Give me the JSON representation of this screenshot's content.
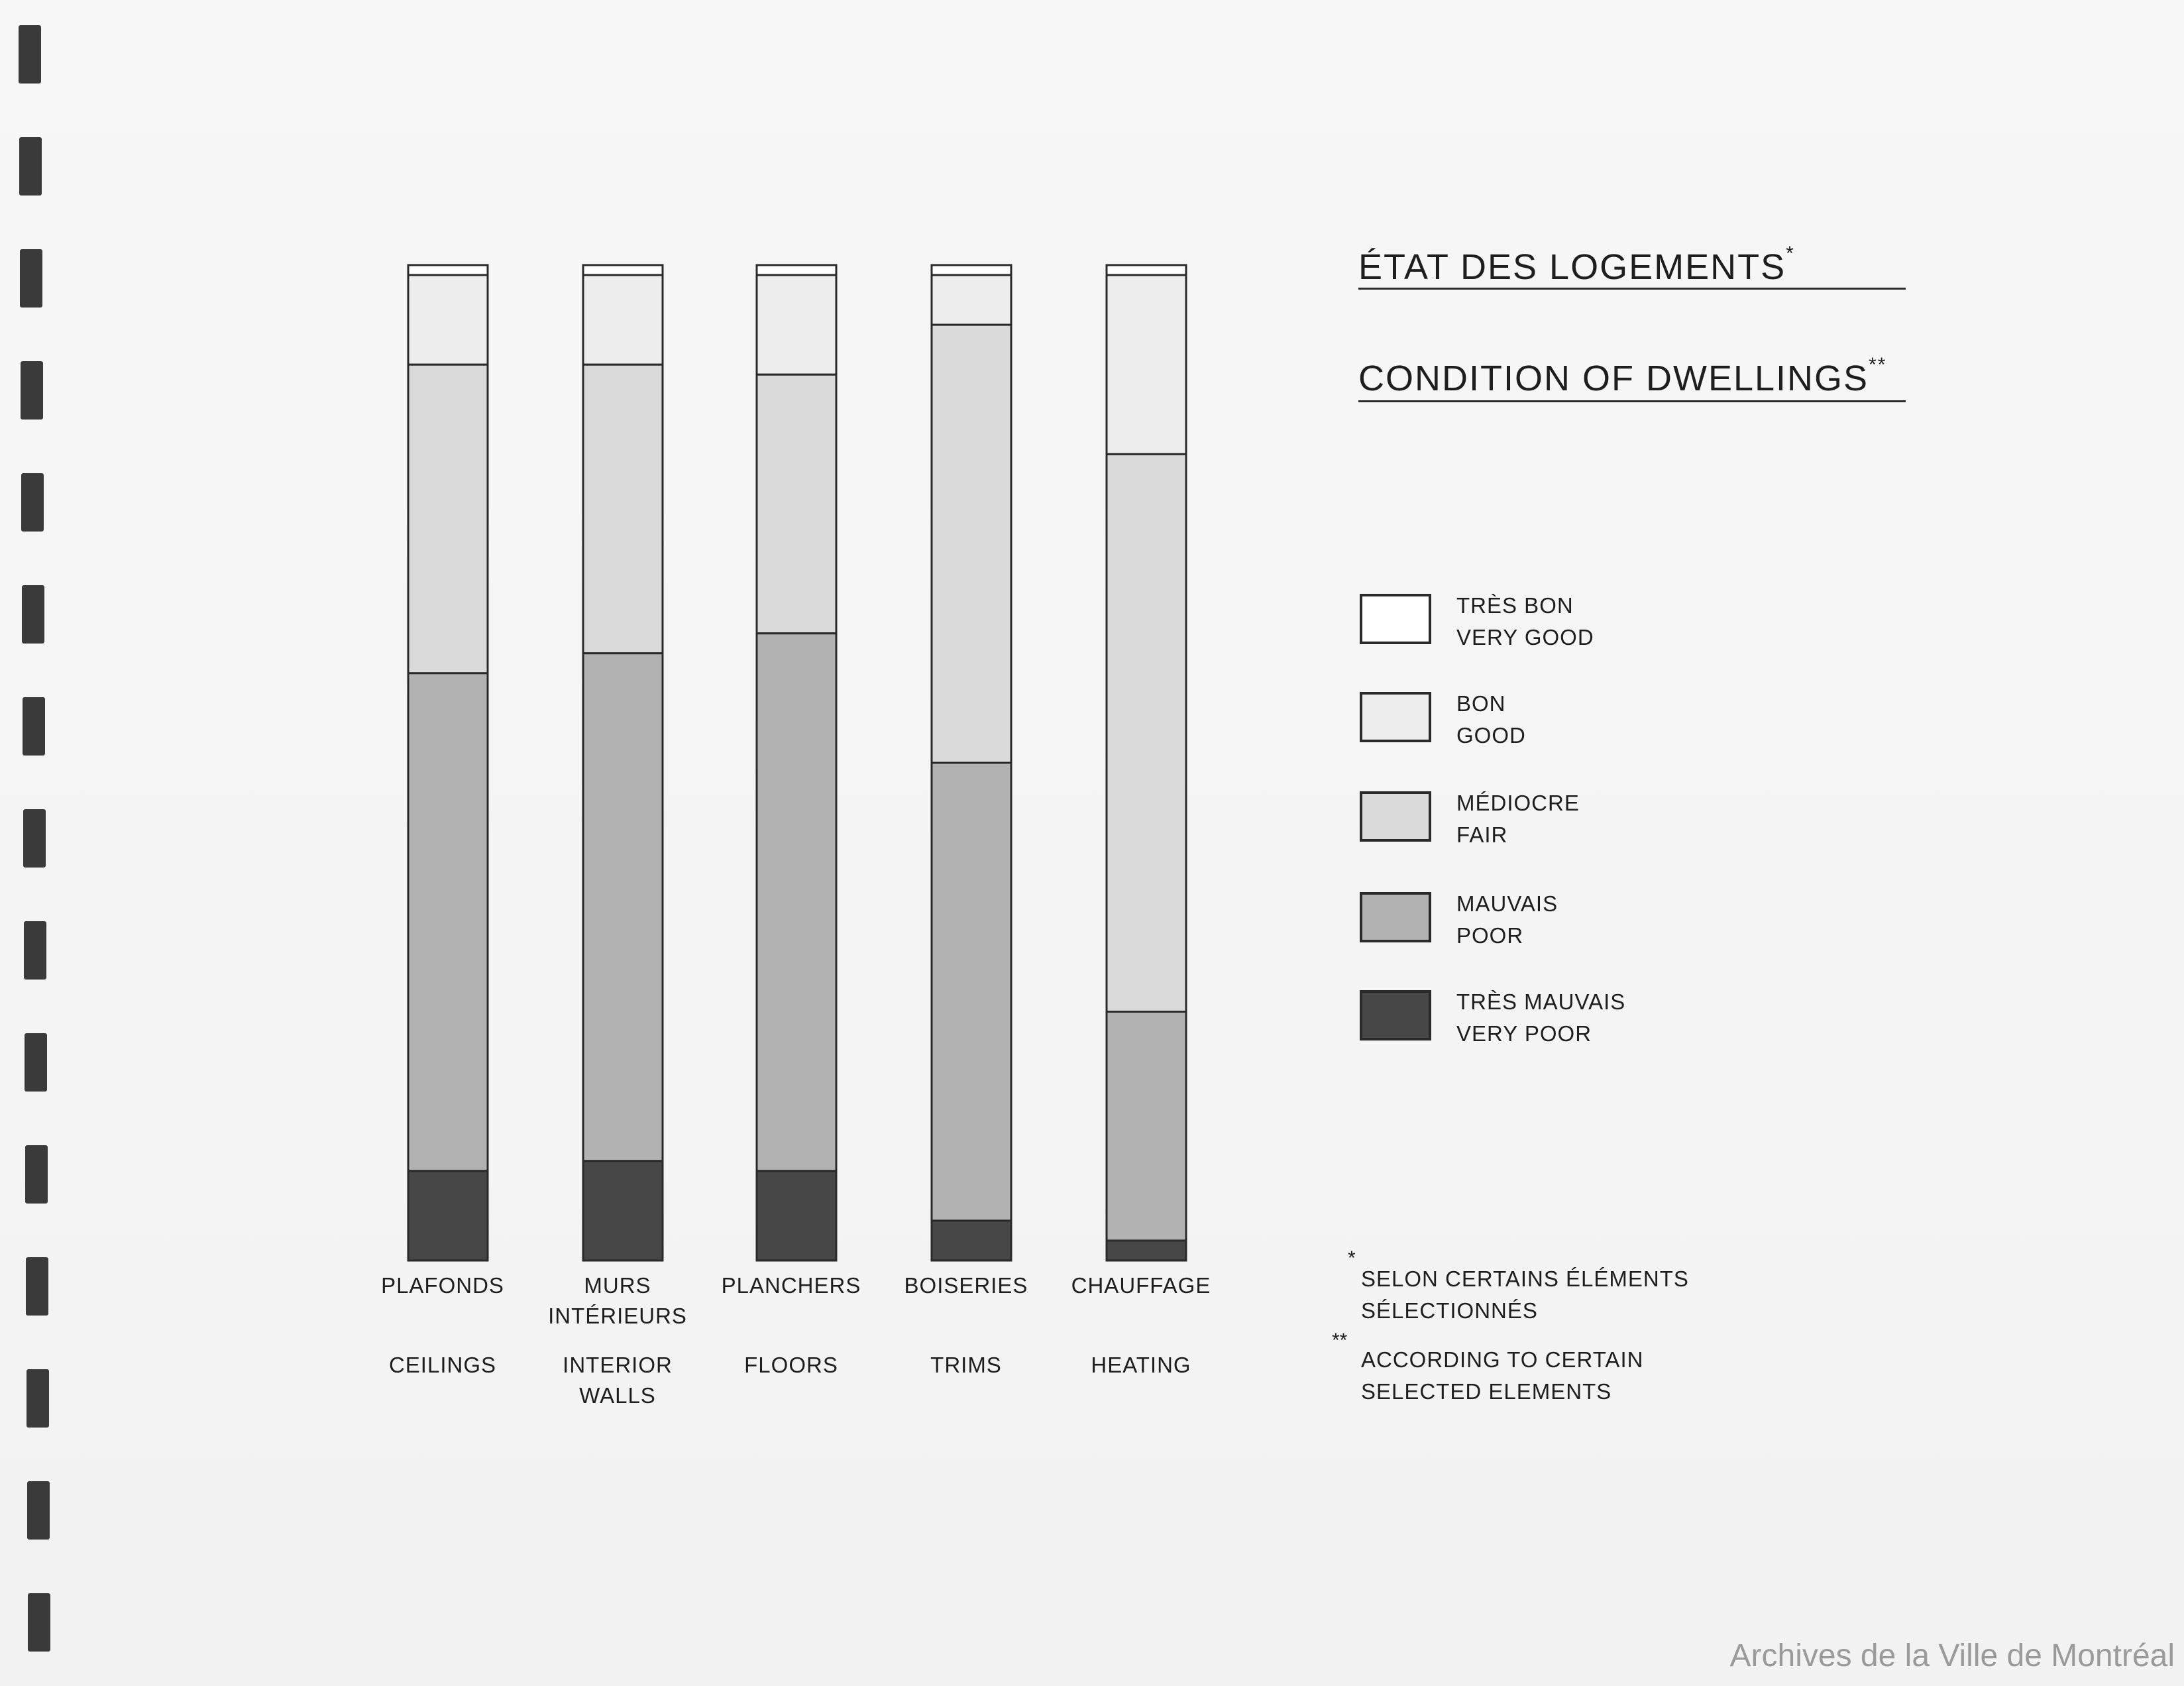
{
  "title": {
    "fr": "ÉTAT DES LOGEMENTS",
    "fr_mark": "*",
    "en": "CONDITION OF DWELLINGS",
    "en_mark": "**"
  },
  "notes": {
    "fr_mark": "*",
    "fr_line1": "SELON CERTAINS ÉLÉMENTS",
    "fr_line2": "SÉLECTIONNÉS",
    "en_mark": "**",
    "en_line1": "ACCORDING TO CERTAIN",
    "en_line2": "SELECTED ELEMENTS"
  },
  "credit": "Archives de la Ville de Montréal",
  "colors": {
    "very_good": "#ffffff",
    "good": "#ededed",
    "fair": "#dadada",
    "poor": "#b2b2b2",
    "very_poor": "#474747",
    "outline": "#2a2a2a"
  },
  "chart_data": {
    "type": "bar",
    "stacked": true,
    "percent": true,
    "categories": [
      {
        "fr": "PLAFONDS",
        "fr2": "",
        "en": "CEILINGS",
        "en2": ""
      },
      {
        "fr": "MURS",
        "fr2": "INTÉRIEURS",
        "en": "INTERIOR",
        "en2": "WALLS"
      },
      {
        "fr": "PLANCHERS",
        "fr2": "",
        "en": "FLOORS",
        "en2": ""
      },
      {
        "fr": "BOISERIES",
        "fr2": "",
        "en": "TRIMS",
        "en2": ""
      },
      {
        "fr": "CHAUFFAGE",
        "fr2": "",
        "en": "HEATING",
        "en2": ""
      }
    ],
    "series": [
      {
        "key": "very_good",
        "name_fr": "TRÈS BON",
        "name_en": "VERY GOOD",
        "values": [
          1,
          1,
          1,
          1,
          1
        ]
      },
      {
        "key": "good",
        "name_fr": "BON",
        "name_en": "GOOD",
        "values": [
          9,
          9,
          10,
          5,
          18
        ]
      },
      {
        "key": "fair",
        "name_fr": "MÉDIOCRE",
        "name_en": "FAIR",
        "values": [
          31,
          29,
          26,
          44,
          56
        ]
      },
      {
        "key": "poor",
        "name_fr": "MAUVAIS",
        "name_en": "POOR",
        "values": [
          50,
          51,
          54,
          46,
          23
        ]
      },
      {
        "key": "very_poor",
        "name_fr": "TRÈS MAUVAIS",
        "name_en": "VERY POOR",
        "values": [
          9,
          10,
          9,
          4,
          2
        ]
      }
    ],
    "ylim": [
      0,
      100
    ],
    "grid": false,
    "legend_position": "right"
  }
}
